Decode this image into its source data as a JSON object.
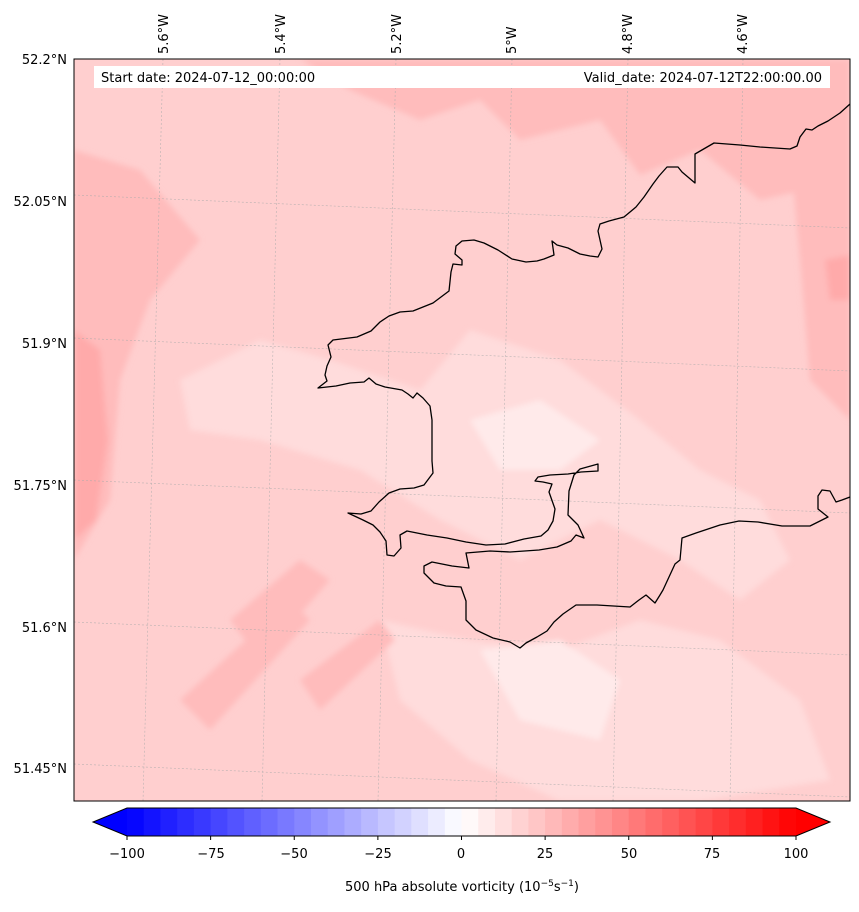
{
  "map": {
    "start_label": "Start date: 2024-07-12_00:00:00",
    "valid_label": "Valid_date: 2024-07-12T22:00:00.00",
    "lat_labels": [
      "52.2°N",
      "52.05°N",
      "51.9°N",
      "51.75°N",
      "51.6°N",
      "51.45°N"
    ],
    "lon_labels": [
      "5.6°W",
      "5.4°W",
      "5.2°W",
      "5°W",
      "4.8°W",
      "4.6°W"
    ],
    "field_colors": {
      "base": "#ffcfcf",
      "lighter": "#ffdcdc",
      "lightest": "#ffeaea",
      "darker": "#ffbcbc",
      "darkest": "#ffaaaa"
    },
    "coastline_color": "#000000"
  },
  "colorbar": {
    "title": "500 hPa absolute vorticity (10",
    "title_unit_a": "−5",
    "title_unit_b": "s",
    "title_unit_c": "−1",
    "title_close": ")",
    "tick_labels": [
      "−100",
      "−75",
      "−50",
      "−25",
      "0",
      "25",
      "50",
      "75",
      "100"
    ],
    "min": -100,
    "max": 100,
    "step": 5,
    "color_min": "#0000ff",
    "color_mid": "#ffffff",
    "color_max": "#ff0000"
  }
}
